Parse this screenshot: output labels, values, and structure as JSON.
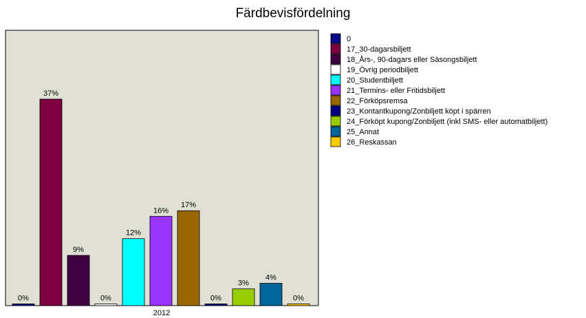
{
  "chart_data": {
    "type": "bar",
    "title": "Färdbevisfördelning",
    "categories": [
      "2012"
    ],
    "xlabel": "",
    "ylabel": "",
    "ylim": [
      0,
      40
    ],
    "grid": false,
    "legend_position": "right",
    "background_color": "#E0E0D5",
    "series": [
      {
        "name": "0",
        "values": [
          0
        ],
        "label": "0%",
        "color": "#0B0B8A"
      },
      {
        "name": "17_30-dagarsbiljett",
        "values": [
          37
        ],
        "label": "37%",
        "color": "#7D0040"
      },
      {
        "name": "18_Års-, 90-dagars eller Säsongsbiljett",
        "values": [
          9
        ],
        "label": "9%",
        "color": "#3F0040"
      },
      {
        "name": "19_Övrig periodbiljett",
        "values": [
          0
        ],
        "label": "0%",
        "color": "#FFFFFF"
      },
      {
        "name": "20_Studentbiljett",
        "values": [
          12
        ],
        "label": "12%",
        "color": "#00FFFF"
      },
      {
        "name": "21_Termins- eller Fritidsbiljett",
        "values": [
          16
        ],
        "label": "16%",
        "color": "#9933FF"
      },
      {
        "name": "22_Förköpsremsa",
        "values": [
          17
        ],
        "label": "17%",
        "color": "#996600"
      },
      {
        "name": "23_Kontantkupong/Zonbiljett köpt i spärren",
        "values": [
          0
        ],
        "label": "0%",
        "color": "#000080"
      },
      {
        "name": "24_Förköpt kupong/Zonbiljett (inkl SMS- eller automatbiljett)",
        "values": [
          3
        ],
        "label": "3%",
        "color": "#99CC00"
      },
      {
        "name": "25_Annat",
        "values": [
          4
        ],
        "label": "4%",
        "color": "#006699"
      },
      {
        "name": "26_Reskassan",
        "values": [
          0
        ],
        "label": "0%",
        "color": "#FFCC00"
      }
    ]
  }
}
